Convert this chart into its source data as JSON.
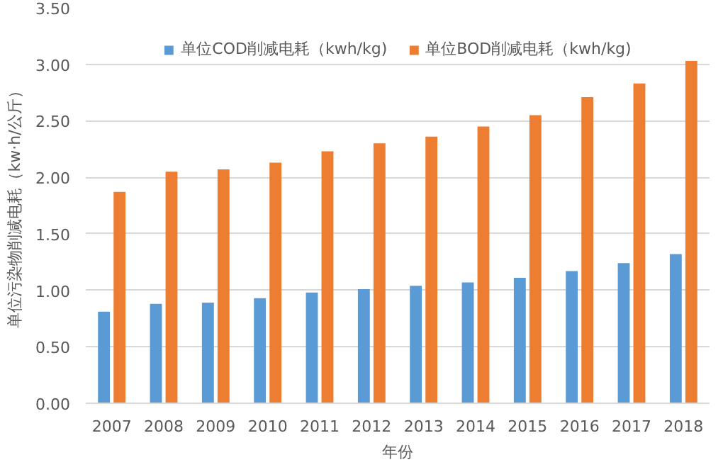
{
  "chart_data": {
    "type": "bar",
    "xlabel": "年份",
    "ylabel": "单位污染物削减电耗（kw·h/公斤）",
    "categories": [
      "2007",
      "2008",
      "2009",
      "2010",
      "2011",
      "2012",
      "2013",
      "2014",
      "2015",
      "2016",
      "2017",
      "2018"
    ],
    "series": [
      {
        "name": "单位COD削减电耗（kwh/kg)",
        "color": "#5b9bd5",
        "values": [
          0.81,
          0.88,
          0.89,
          0.93,
          0.98,
          1.01,
          1.04,
          1.07,
          1.11,
          1.17,
          1.24,
          1.32
        ]
      },
      {
        "name": "单位BOD削减电耗（kwh/kg)",
        "color": "#ed7d31",
        "values": [
          1.87,
          2.05,
          2.07,
          2.13,
          2.23,
          2.3,
          2.36,
          2.45,
          2.55,
          2.71,
          2.83,
          3.03
        ]
      }
    ],
    "ylim": [
      0,
      3.5
    ],
    "yticks": [
      {
        "value": 0,
        "label": "0.00"
      },
      {
        "value": 0.5,
        "label": "0.50"
      },
      {
        "value": 1,
        "label": "1.00"
      },
      {
        "value": 1.5,
        "label": "1.50"
      },
      {
        "value": 2,
        "label": "2.00"
      },
      {
        "value": 2.5,
        "label": "2.50"
      },
      {
        "value": 3,
        "label": "3.00"
      },
      {
        "value": 3.5,
        "label": "3.50"
      }
    ],
    "grid": "y",
    "legend": "top"
  }
}
